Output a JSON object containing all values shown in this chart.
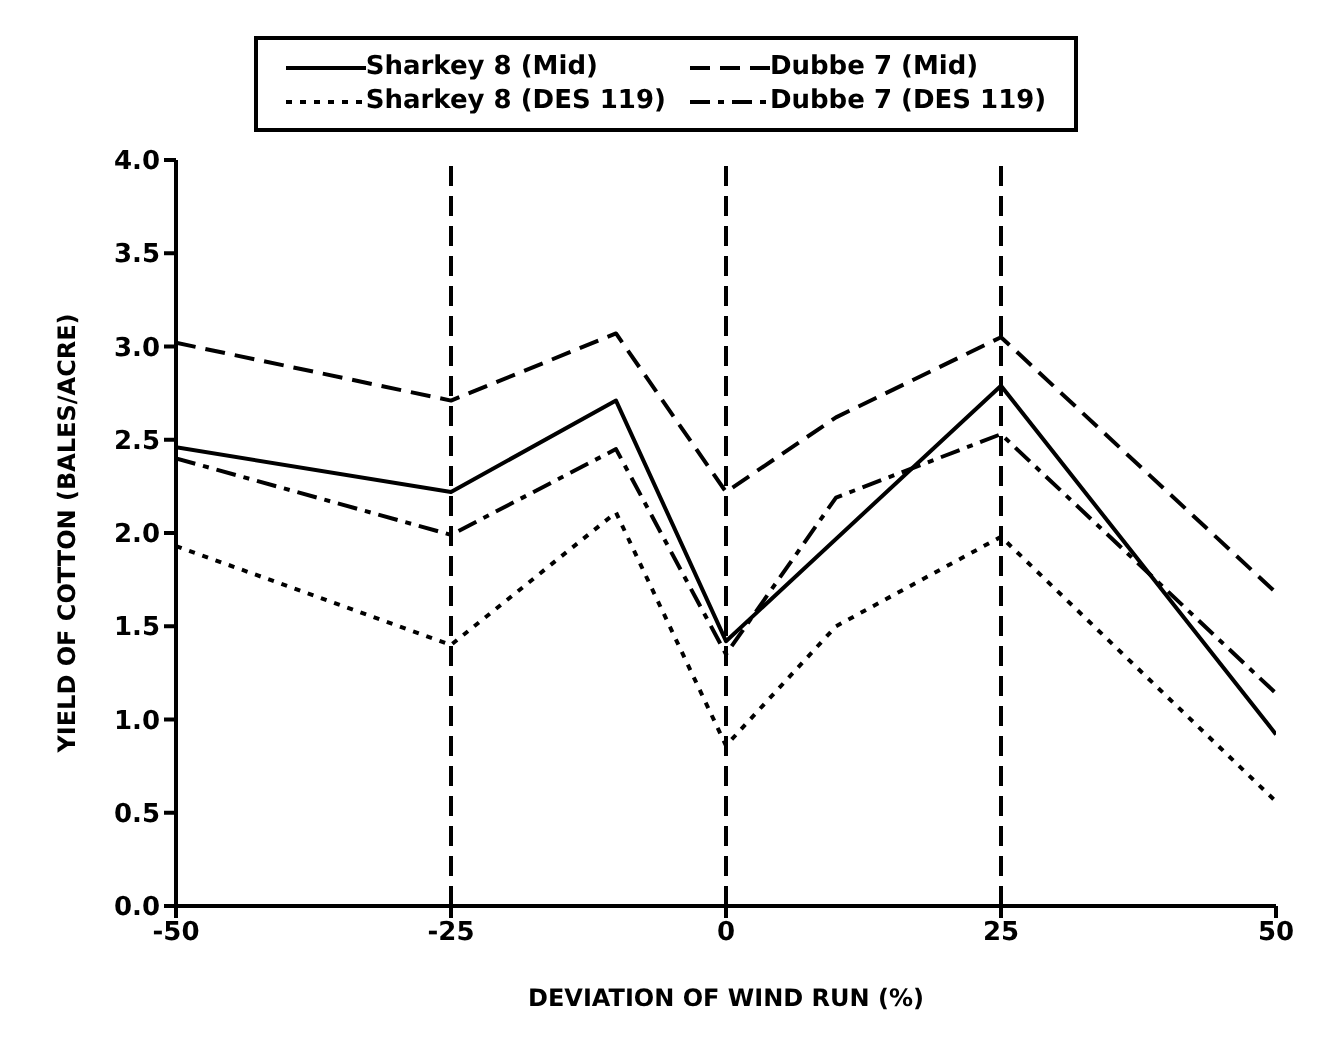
{
  "chart_data": {
    "type": "line",
    "xlabel": "DEVIATION OF WIND RUN (%)",
    "ylabel": "YIELD OF COTTON (BALES/ACRE)",
    "series": [
      {
        "name": "Sharkey 8 (Mid)",
        "color": "#000000",
        "line_style": "solid",
        "x": [
          -50,
          -25,
          -10,
          0,
          25,
          50
        ],
        "values": [
          2.46,
          2.22,
          2.71,
          1.42,
          2.79,
          0.92
        ]
      },
      {
        "name": "Dubbe 7 (Mid)",
        "color": "#000000",
        "line_style": "dashed",
        "x": [
          -50,
          -25,
          -10,
          0,
          10,
          25,
          50
        ],
        "values": [
          3.02,
          2.71,
          3.07,
          2.22,
          2.62,
          3.05,
          1.68
        ]
      },
      {
        "name": "Sharkey 8 (DES 119)",
        "color": "#000000",
        "line_style": "dotted",
        "x": [
          -50,
          -25,
          -10,
          0,
          10,
          25,
          50
        ],
        "values": [
          1.93,
          1.4,
          2.11,
          0.86,
          1.5,
          1.98,
          0.56
        ]
      },
      {
        "name": "Dubbe 7 (DES 119)",
        "color": "#000000",
        "line_style": "dashdot",
        "x": [
          -50,
          -25,
          -10,
          0,
          10,
          25,
          50
        ],
        "values": [
          2.4,
          1.99,
          2.45,
          1.35,
          2.19,
          2.53,
          1.14
        ]
      }
    ],
    "xlim": [
      -50,
      50
    ],
    "xticks": [
      -50,
      -25,
      0,
      25,
      50
    ],
    "ylim": [
      0,
      4
    ],
    "yticks": [
      {
        "value": 0,
        "label": "0.0"
      },
      {
        "value": 0.5,
        "label": "0.5"
      },
      {
        "value": 1,
        "label": "1.0"
      },
      {
        "value": 1.5,
        "label": "1.5"
      },
      {
        "value": 2,
        "label": "2.0"
      },
      {
        "value": 2.5,
        "label": "2.5"
      },
      {
        "value": 3,
        "label": "3.0"
      },
      {
        "value": 3.5,
        "label": "3.5"
      },
      {
        "value": 4,
        "label": "4.0"
      }
    ],
    "ref_lines": [
      {
        "axis": "x",
        "value": -25,
        "line_style": "dashed",
        "color": "#000000"
      },
      {
        "axis": "x",
        "value": 0,
        "line_style": "dashed",
        "color": "#000000"
      },
      {
        "axis": "x",
        "value": 25,
        "line_style": "dashed",
        "color": "#000000"
      }
    ],
    "legend": "top",
    "marker": "none"
  }
}
